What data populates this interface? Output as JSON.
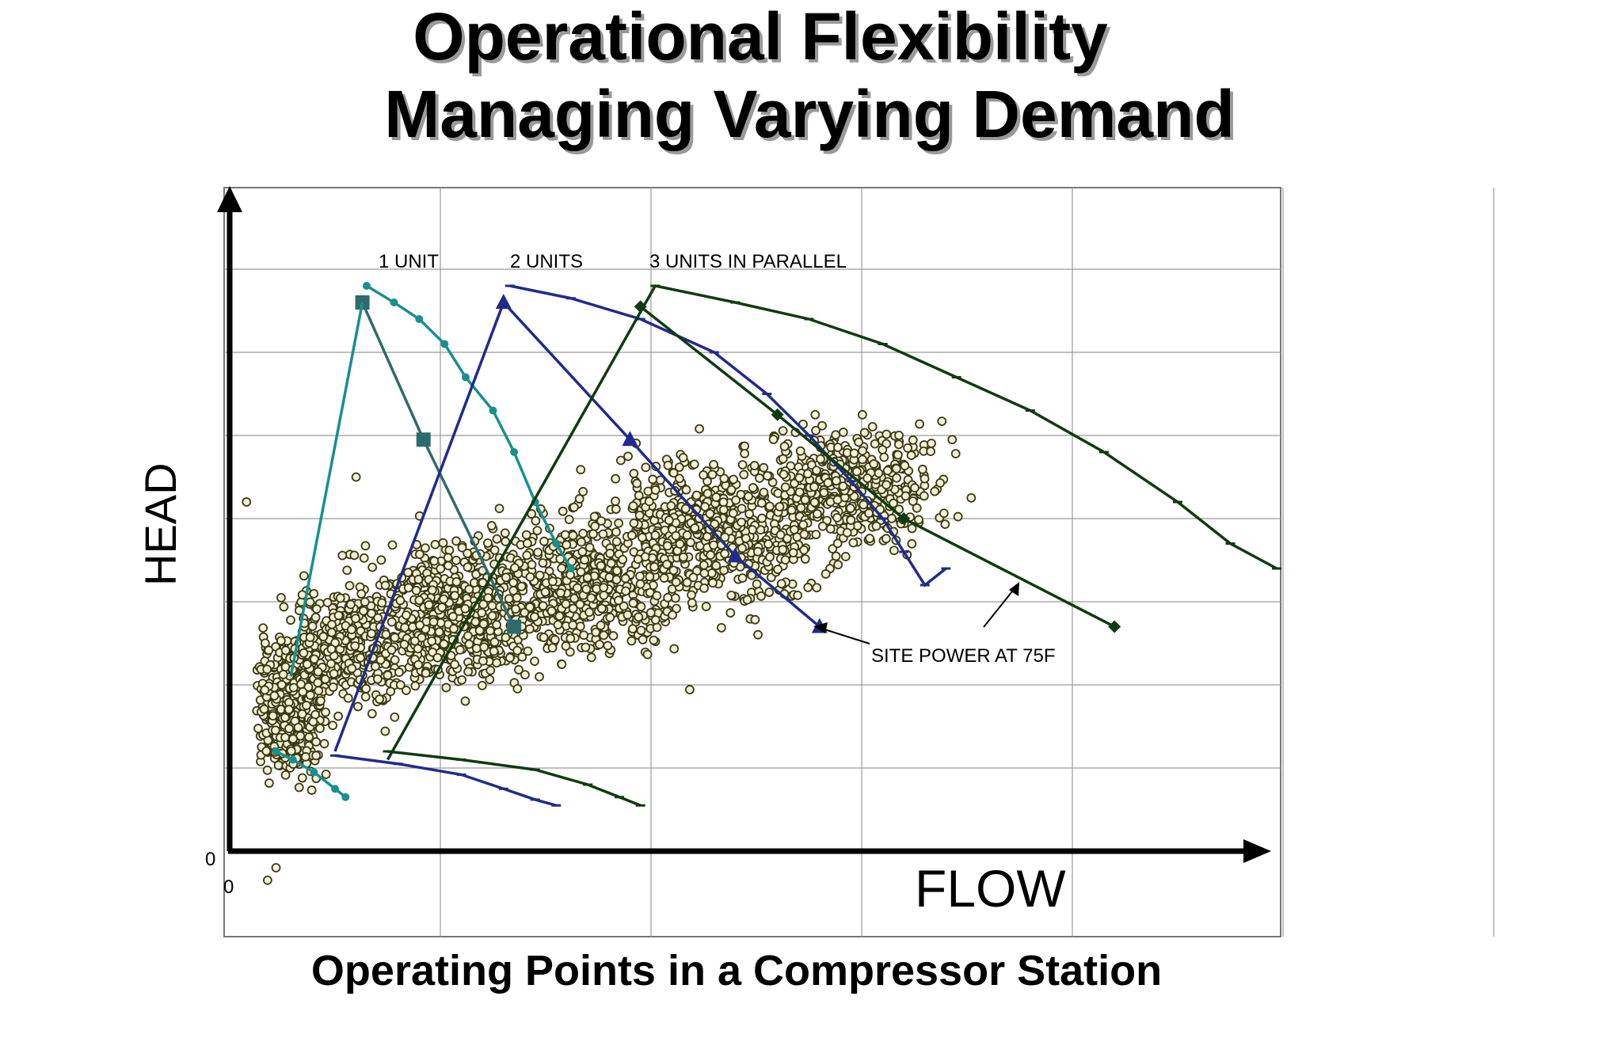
{
  "title_line1": "Operational Flexibility",
  "title_line2": "Managing Varying Demand",
  "subtitle": "Operating Points in a Compressor Station",
  "colors": {
    "one_unit": "#1a8f8f",
    "one_unit_surge": "#2f6b6b",
    "two_units": "#232a8c",
    "three_units": "#103b10",
    "scatter_fill": "#f3f0d8",
    "scatter_stroke": "#3a3a12"
  },
  "chart_data": {
    "type": "line",
    "xlabel": "FLOW",
    "ylabel": "HEAD",
    "xlim": [
      0,
      5
    ],
    "ylim": [
      0,
      8
    ],
    "x_origin_label": "0",
    "y_origin_label": "0",
    "grid": true,
    "annotations": {
      "one_unit": "1 UNIT",
      "two_units": "2 UNITS",
      "three_units": "3 UNITS IN PARALLEL",
      "site_power": "SITE POWER AT 75F"
    },
    "series": [
      {
        "key": "u1_top",
        "group": "one_unit",
        "marker": "dot",
        "x": [
          0.65,
          0.78,
          0.9,
          1.02,
          1.12,
          1.25,
          1.35,
          1.45,
          1.55,
          1.62
        ],
        "y": [
          6.8,
          6.6,
          6.4,
          6.1,
          5.7,
          5.3,
          4.8,
          4.2,
          3.7,
          3.4
        ]
      },
      {
        "key": "u1_right",
        "group": "one_unit_surge",
        "marker": "square",
        "x": [
          0.63,
          0.92,
          1.35
        ],
        "y": [
          6.6,
          4.95,
          2.7
        ]
      },
      {
        "key": "u1_left",
        "group": "one_unit",
        "marker": "none",
        "x": [
          0.29,
          0.63
        ],
        "y": [
          2.1,
          6.6
        ]
      },
      {
        "key": "u1_low",
        "group": "one_unit",
        "marker": "dot",
        "x": [
          0.22,
          0.3,
          0.4,
          0.5,
          0.55
        ],
        "y": [
          1.2,
          1.1,
          0.95,
          0.75,
          0.65
        ]
      },
      {
        "key": "u2_top",
        "group": "two_units",
        "marker": "tick",
        "x": [
          1.33,
          1.62,
          1.95,
          2.3,
          2.55,
          2.75,
          2.95,
          3.1,
          3.2,
          3.3,
          3.4
        ],
        "y": [
          6.8,
          6.65,
          6.4,
          6.0,
          5.5,
          5.0,
          4.45,
          4.0,
          3.6,
          3.2,
          3.4
        ]
      },
      {
        "key": "u2_right",
        "group": "two_units",
        "marker": "triangle",
        "x": [
          1.3,
          1.9,
          2.4,
          2.8
        ],
        "y": [
          6.6,
          4.95,
          3.55,
          2.7
        ]
      },
      {
        "key": "u2_left",
        "group": "two_units",
        "marker": "none",
        "x": [
          0.5,
          1.3
        ],
        "y": [
          1.2,
          6.6
        ]
      },
      {
        "key": "u2_low",
        "group": "two_units",
        "marker": "tick",
        "x": [
          0.5,
          0.8,
          1.1,
          1.3,
          1.45,
          1.55
        ],
        "y": [
          1.15,
          1.05,
          0.92,
          0.75,
          0.62,
          0.55
        ]
      },
      {
        "key": "u3_top",
        "group": "three_units",
        "marker": "tick",
        "x": [
          2.02,
          2.4,
          2.75,
          3.1,
          3.45,
          3.8,
          4.15,
          4.5,
          4.75,
          4.97
        ],
        "y": [
          6.8,
          6.6,
          6.4,
          6.1,
          5.7,
          5.3,
          4.8,
          4.2,
          3.7,
          3.4
        ]
      },
      {
        "key": "u3_right",
        "group": "three_units",
        "marker": "diamond",
        "x": [
          1.95,
          2.6,
          3.2,
          4.2
        ],
        "y": [
          6.55,
          5.25,
          4.0,
          2.7
        ]
      },
      {
        "key": "u3_left",
        "group": "three_units",
        "marker": "none",
        "x": [
          0.75,
          2.02
        ],
        "y": [
          1.1,
          6.8
        ]
      },
      {
        "key": "u3_low",
        "group": "three_units",
        "marker": "tick",
        "x": [
          0.75,
          1.1,
          1.45,
          1.7,
          1.85,
          1.95
        ],
        "y": [
          1.2,
          1.1,
          0.98,
          0.8,
          0.65,
          0.55
        ]
      }
    ],
    "operating_points": {
      "description_clusters": [
        {
          "cx": 0.28,
          "cy": 1.7,
          "sx": 0.12,
          "sy": 0.55,
          "n": 420
        },
        {
          "cx": 0.55,
          "cy": 2.45,
          "sx": 0.22,
          "sy": 0.55,
          "n": 380
        },
        {
          "cx": 1.05,
          "cy": 2.85,
          "sx": 0.3,
          "sy": 0.6,
          "n": 520
        },
        {
          "cx": 1.65,
          "cy": 3.2,
          "sx": 0.33,
          "sy": 0.6,
          "n": 520
        },
        {
          "cx": 2.3,
          "cy": 3.85,
          "sx": 0.35,
          "sy": 0.65,
          "n": 560
        },
        {
          "cx": 2.95,
          "cy": 4.4,
          "sx": 0.3,
          "sy": 0.5,
          "n": 440
        }
      ],
      "outliers": [
        [
          0.08,
          4.2
        ],
        [
          0.6,
          4.5
        ],
        [
          0.18,
          -0.35
        ],
        [
          0.22,
          -0.2
        ]
      ]
    }
  }
}
